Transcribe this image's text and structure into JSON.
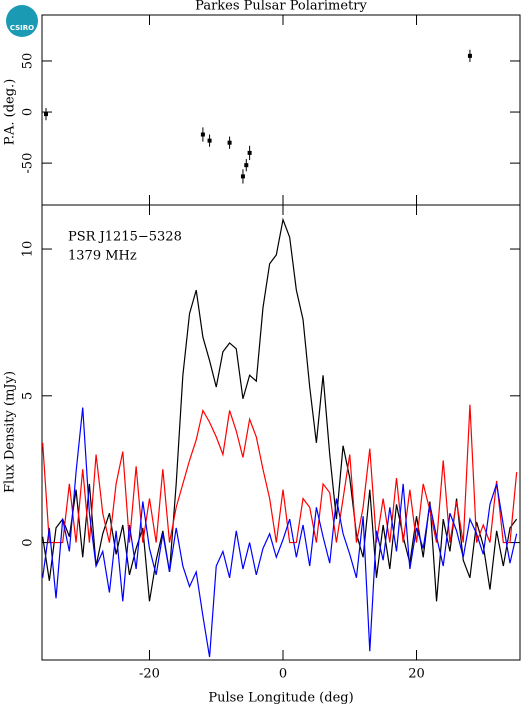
{
  "logo": "CSIRO",
  "chart_data": [
    {
      "type": "scatter",
      "title": "Parkes Pulsar Polarimetry",
      "ylabel": "P.A. (deg.)",
      "x": [
        -35.5,
        -12,
        -11,
        -8,
        -6,
        -5.5,
        -5,
        28
      ],
      "values": [
        -2,
        -22,
        -28,
        -30,
        -63,
        -52,
        -40,
        55
      ],
      "errors": [
        6,
        7,
        6,
        6,
        7,
        6,
        7,
        6
      ],
      "color": "#000000",
      "xlim": [
        -36.1,
        35.5
      ],
      "ylim": [
        -91,
        95
      ],
      "yticks": [
        -50,
        0,
        50
      ]
    },
    {
      "type": "line",
      "xlabel": "Pulse Longitude (deg)",
      "ylabel": "Flux Density (mJy)",
      "annotations": [
        "PSR J1215−5328",
        "1379 MHz"
      ],
      "x": [
        -36,
        -35,
        -34,
        -33,
        -32,
        -31,
        -30,
        -29,
        -28,
        -27,
        -26,
        -25,
        -24,
        -23,
        -22,
        -21,
        -20,
        -19,
        -18,
        -17,
        -16,
        -15,
        -14,
        -13,
        -12,
        -11,
        -10,
        -9,
        -8,
        -7,
        -6,
        -5,
        -4,
        -3,
        -2,
        -1,
        0,
        1,
        2,
        3,
        4,
        5,
        6,
        7,
        8,
        9,
        10,
        11,
        12,
        13,
        14,
        15,
        16,
        17,
        18,
        19,
        20,
        21,
        22,
        23,
        24,
        25,
        26,
        27,
        28,
        29,
        30,
        31,
        32,
        33,
        34,
        35
      ],
      "series": [
        {
          "color": "#000000",
          "values": [
            0.2,
            -1.3,
            0.5,
            0.8,
            0.2,
            1.8,
            -0.5,
            2.0,
            -0.8,
            0.3,
            1.0,
            -0.4,
            0.6,
            -1.1,
            -0.2,
            0.5,
            -2.0,
            -0.6,
            0.4,
            -1.0,
            2.0,
            5.7,
            7.8,
            8.6,
            7.0,
            6.2,
            5.3,
            6.5,
            6.8,
            6.6,
            4.9,
            5.7,
            5.5,
            8.0,
            9.5,
            9.8,
            11.0,
            10.4,
            8.6,
            7.6,
            5.3,
            3.4,
            5.7,
            3.0,
            0.8,
            3.3,
            2.2,
            0.3,
            -0.5,
            1.8,
            -1.2,
            0.6,
            -0.9,
            1.3,
            0.2,
            -0.7,
            0.9,
            -0.5,
            1.4,
            -2.0,
            0.8,
            -0.3,
            1.5,
            -0.6,
            -1.2,
            0.7,
            -0.1,
            -1.6,
            0.4,
            -0.8,
            0.5,
            0.8
          ]
        },
        {
          "color": "#ff0000",
          "values": [
            3.4,
            0,
            0,
            0,
            2.0,
            0,
            2.5,
            0,
            3.0,
            1.0,
            0,
            2.0,
            3.1,
            0,
            2.6,
            0,
            1.5,
            0,
            2.5,
            0,
            1.2,
            2.0,
            2.8,
            3.5,
            4.5,
            4.1,
            3.6,
            3.0,
            4.5,
            3.8,
            2.9,
            4.2,
            3.6,
            2.5,
            1.5,
            0,
            1.8,
            0,
            0,
            1.5,
            1.2,
            0,
            2.0,
            1.7,
            0,
            1.5,
            3.0,
            0,
            1.2,
            3.2,
            0,
            1.5,
            0,
            2.2,
            0,
            1.8,
            0,
            2.0,
            1.1,
            0,
            2.8,
            0,
            1.4,
            0,
            4.7,
            0,
            0.6,
            0,
            2.1,
            0,
            0,
            2.4
          ]
        },
        {
          "color": "#0000ff",
          "values": [
            -1.2,
            0.5,
            -1.9,
            0.8,
            -0.3,
            2.4,
            4.6,
            1.0,
            -0.8,
            -0.3,
            -1.7,
            0.4,
            -2.0,
            0.6,
            -0.9,
            1.4,
            -0.2,
            -1.1,
            0.3,
            -1.0,
            0.5,
            -0.8,
            -1.5,
            -1.0,
            -2.5,
            -3.9,
            -0.8,
            -0.3,
            -1.2,
            0.4,
            -0.9,
            0,
            -1.1,
            -0.2,
            0.3,
            -0.5,
            0.1,
            0.8,
            -0.5,
            0.6,
            -0.8,
            1.2,
            0.2,
            -0.7,
            1.5,
            0.3,
            -0.4,
            -1.2,
            0.9,
            -3.7,
            0.4,
            -0.6,
            1.2,
            -0.3,
            2.0,
            -0.9,
            0.5,
            -0.2,
            1.3,
            0.2,
            -0.8,
            1.0,
            0.4,
            -0.5,
            0.8,
            0.3,
            -0.4,
            1.3,
            2.0,
            0.6,
            -0.7,
            0.3
          ]
        }
      ],
      "xlim": [
        -36.1,
        35.5
      ],
      "xticks": [
        -20,
        0,
        20
      ],
      "ylim": [
        -4,
        11.5
      ],
      "yticks": [
        0,
        5,
        10
      ]
    }
  ]
}
